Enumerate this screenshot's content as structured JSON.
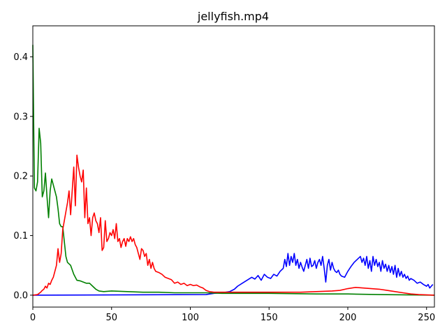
{
  "chart_data": {
    "type": "line",
    "title": "jellyfish.mp4",
    "xlabel": "",
    "ylabel": "",
    "xlim": [
      0,
      255
    ],
    "ylim": [
      -0.02,
      0.452
    ],
    "xticks": [
      0,
      50,
      100,
      150,
      200,
      250
    ],
    "yticks": [
      0.0,
      0.1,
      0.2,
      0.3,
      0.4
    ],
    "ytick_labels": [
      "0.0",
      "0.1",
      "0.2",
      "0.3",
      "0.4"
    ],
    "grid": false,
    "legend": "none",
    "series": [
      {
        "color": "#0000ff",
        "points": [
          [
            0,
            0.0
          ],
          [
            110,
            0.001
          ],
          [
            115,
            0.003
          ],
          [
            120,
            0.004
          ],
          [
            125,
            0.006
          ],
          [
            128,
            0.01
          ],
          [
            130,
            0.015
          ],
          [
            133,
            0.02
          ],
          [
            136,
            0.025
          ],
          [
            139,
            0.03
          ],
          [
            141,
            0.027
          ],
          [
            143,
            0.033
          ],
          [
            145,
            0.025
          ],
          [
            147,
            0.035
          ],
          [
            149,
            0.03
          ],
          [
            151,
            0.028
          ],
          [
            153,
            0.035
          ],
          [
            155,
            0.032
          ],
          [
            157,
            0.04
          ],
          [
            159,
            0.045
          ],
          [
            160,
            0.06
          ],
          [
            161,
            0.048
          ],
          [
            162,
            0.07
          ],
          [
            163,
            0.05
          ],
          [
            164,
            0.065
          ],
          [
            165,
            0.055
          ],
          [
            166,
            0.07
          ],
          [
            167,
            0.05
          ],
          [
            168,
            0.06
          ],
          [
            169,
            0.045
          ],
          [
            170,
            0.055
          ],
          [
            171,
            0.047
          ],
          [
            172,
            0.04
          ],
          [
            173,
            0.05
          ],
          [
            174,
            0.06
          ],
          [
            175,
            0.045
          ],
          [
            176,
            0.062
          ],
          [
            177,
            0.048
          ],
          [
            178,
            0.05
          ],
          [
            179,
            0.058
          ],
          [
            180,
            0.045
          ],
          [
            181,
            0.055
          ],
          [
            182,
            0.06
          ],
          [
            183,
            0.05
          ],
          [
            184,
            0.065
          ],
          [
            185,
            0.045
          ],
          [
            186,
            0.022
          ],
          [
            187,
            0.05
          ],
          [
            188,
            0.06
          ],
          [
            189,
            0.042
          ],
          [
            190,
            0.055
          ],
          [
            191,
            0.045
          ],
          [
            192,
            0.04
          ],
          [
            193,
            0.038
          ],
          [
            194,
            0.042
          ],
          [
            195,
            0.035
          ],
          [
            196,
            0.032
          ],
          [
            198,
            0.03
          ],
          [
            200,
            0.04
          ],
          [
            202,
            0.048
          ],
          [
            204,
            0.055
          ],
          [
            206,
            0.06
          ],
          [
            208,
            0.065
          ],
          [
            209,
            0.055
          ],
          [
            210,
            0.062
          ],
          [
            211,
            0.05
          ],
          [
            212,
            0.065
          ],
          [
            213,
            0.045
          ],
          [
            214,
            0.058
          ],
          [
            215,
            0.04
          ],
          [
            216,
            0.065
          ],
          [
            217,
            0.05
          ],
          [
            218,
            0.06
          ],
          [
            219,
            0.048
          ],
          [
            220,
            0.055
          ],
          [
            221,
            0.04
          ],
          [
            222,
            0.058
          ],
          [
            223,
            0.045
          ],
          [
            224,
            0.052
          ],
          [
            225,
            0.04
          ],
          [
            226,
            0.05
          ],
          [
            227,
            0.038
          ],
          [
            228,
            0.048
          ],
          [
            229,
            0.035
          ],
          [
            230,
            0.05
          ],
          [
            231,
            0.03
          ],
          [
            232,
            0.045
          ],
          [
            233,
            0.032
          ],
          [
            234,
            0.04
          ],
          [
            235,
            0.03
          ],
          [
            236,
            0.035
          ],
          [
            237,
            0.028
          ],
          [
            238,
            0.032
          ],
          [
            239,
            0.025
          ],
          [
            240,
            0.028
          ],
          [
            242,
            0.025
          ],
          [
            244,
            0.02
          ],
          [
            246,
            0.022
          ],
          [
            248,
            0.018
          ],
          [
            250,
            0.015
          ],
          [
            251,
            0.018
          ],
          [
            252,
            0.012
          ],
          [
            253,
            0.015
          ],
          [
            254,
            0.018
          ]
        ]
      },
      {
        "color": "#008000",
        "points": [
          [
            0,
            0.42
          ],
          [
            1,
            0.18
          ],
          [
            2,
            0.175
          ],
          [
            3,
            0.19
          ],
          [
            4,
            0.28
          ],
          [
            5,
            0.255
          ],
          [
            6,
            0.165
          ],
          [
            7,
            0.175
          ],
          [
            8,
            0.205
          ],
          [
            9,
            0.165
          ],
          [
            10,
            0.13
          ],
          [
            11,
            0.175
          ],
          [
            12,
            0.195
          ],
          [
            13,
            0.185
          ],
          [
            14,
            0.175
          ],
          [
            15,
            0.165
          ],
          [
            16,
            0.145
          ],
          [
            17,
            0.12
          ],
          [
            18,
            0.115
          ],
          [
            19,
            0.115
          ],
          [
            20,
            0.09
          ],
          [
            21,
            0.065
          ],
          [
            22,
            0.055
          ],
          [
            24,
            0.05
          ],
          [
            26,
            0.035
          ],
          [
            28,
            0.025
          ],
          [
            30,
            0.024
          ],
          [
            32,
            0.022
          ],
          [
            34,
            0.02
          ],
          [
            36,
            0.02
          ],
          [
            38,
            0.015
          ],
          [
            40,
            0.01
          ],
          [
            42,
            0.007
          ],
          [
            45,
            0.006
          ],
          [
            50,
            0.007
          ],
          [
            60,
            0.006
          ],
          [
            70,
            0.005
          ],
          [
            80,
            0.005
          ],
          [
            90,
            0.004
          ],
          [
            100,
            0.004
          ],
          [
            110,
            0.004
          ],
          [
            120,
            0.003
          ],
          [
            130,
            0.003
          ],
          [
            150,
            0.003
          ],
          [
            180,
            0.002
          ],
          [
            200,
            0.002
          ],
          [
            220,
            0.001
          ],
          [
            255,
            0.0
          ]
        ]
      },
      {
        "color": "#ff0000",
        "points": [
          [
            0,
            0.0
          ],
          [
            3,
            0.001
          ],
          [
            5,
            0.005
          ],
          [
            6,
            0.008
          ],
          [
            7,
            0.01
          ],
          [
            8,
            0.015
          ],
          [
            9,
            0.012
          ],
          [
            10,
            0.02
          ],
          [
            11,
            0.018
          ],
          [
            12,
            0.025
          ],
          [
            13,
            0.03
          ],
          [
            14,
            0.04
          ],
          [
            15,
            0.05
          ],
          [
            16,
            0.078
          ],
          [
            17,
            0.055
          ],
          [
            18,
            0.07
          ],
          [
            19,
            0.11
          ],
          [
            20,
            0.125
          ],
          [
            21,
            0.14
          ],
          [
            22,
            0.155
          ],
          [
            23,
            0.175
          ],
          [
            24,
            0.135
          ],
          [
            25,
            0.175
          ],
          [
            26,
            0.215
          ],
          [
            27,
            0.15
          ],
          [
            28,
            0.235
          ],
          [
            29,
            0.215
          ],
          [
            30,
            0.2
          ],
          [
            31,
            0.19
          ],
          [
            32,
            0.21
          ],
          [
            33,
            0.13
          ],
          [
            34,
            0.18
          ],
          [
            35,
            0.12
          ],
          [
            36,
            0.13
          ],
          [
            37,
            0.1
          ],
          [
            38,
            0.13
          ],
          [
            39,
            0.138
          ],
          [
            40,
            0.125
          ],
          [
            41,
            0.12
          ],
          [
            42,
            0.105
          ],
          [
            43,
            0.13
          ],
          [
            44,
            0.075
          ],
          [
            45,
            0.08
          ],
          [
            46,
            0.125
          ],
          [
            47,
            0.09
          ],
          [
            48,
            0.095
          ],
          [
            49,
            0.105
          ],
          [
            50,
            0.1
          ],
          [
            51,
            0.11
          ],
          [
            52,
            0.095
          ],
          [
            53,
            0.12
          ],
          [
            54,
            0.09
          ],
          [
            55,
            0.095
          ],
          [
            56,
            0.08
          ],
          [
            57,
            0.09
          ],
          [
            58,
            0.095
          ],
          [
            59,
            0.082
          ],
          [
            60,
            0.095
          ],
          [
            61,
            0.09
          ],
          [
            62,
            0.098
          ],
          [
            63,
            0.09
          ],
          [
            64,
            0.095
          ],
          [
            65,
            0.085
          ],
          [
            66,
            0.08
          ],
          [
            67,
            0.07
          ],
          [
            68,
            0.06
          ],
          [
            69,
            0.078
          ],
          [
            70,
            0.075
          ],
          [
            71,
            0.065
          ],
          [
            72,
            0.07
          ],
          [
            73,
            0.05
          ],
          [
            74,
            0.06
          ],
          [
            75,
            0.045
          ],
          [
            76,
            0.055
          ],
          [
            77,
            0.045
          ],
          [
            78,
            0.04
          ],
          [
            80,
            0.038
          ],
          [
            82,
            0.035
          ],
          [
            84,
            0.03
          ],
          [
            86,
            0.028
          ],
          [
            88,
            0.026
          ],
          [
            90,
            0.02
          ],
          [
            92,
            0.022
          ],
          [
            94,
            0.018
          ],
          [
            96,
            0.02
          ],
          [
            98,
            0.016
          ],
          [
            100,
            0.018
          ],
          [
            102,
            0.016
          ],
          [
            104,
            0.017
          ],
          [
            106,
            0.014
          ],
          [
            108,
            0.012
          ],
          [
            110,
            0.008
          ],
          [
            112,
            0.006
          ],
          [
            115,
            0.005
          ],
          [
            120,
            0.005
          ],
          [
            130,
            0.005
          ],
          [
            140,
            0.005
          ],
          [
            150,
            0.005
          ],
          [
            160,
            0.005
          ],
          [
            170,
            0.005
          ],
          [
            180,
            0.006
          ],
          [
            190,
            0.007
          ],
          [
            195,
            0.008
          ],
          [
            200,
            0.011
          ],
          [
            205,
            0.013
          ],
          [
            210,
            0.012
          ],
          [
            215,
            0.011
          ],
          [
            220,
            0.01
          ],
          [
            225,
            0.008
          ],
          [
            230,
            0.006
          ],
          [
            235,
            0.004
          ],
          [
            240,
            0.002
          ],
          [
            245,
            0.001
          ],
          [
            255,
            0.0
          ]
        ]
      }
    ]
  }
}
